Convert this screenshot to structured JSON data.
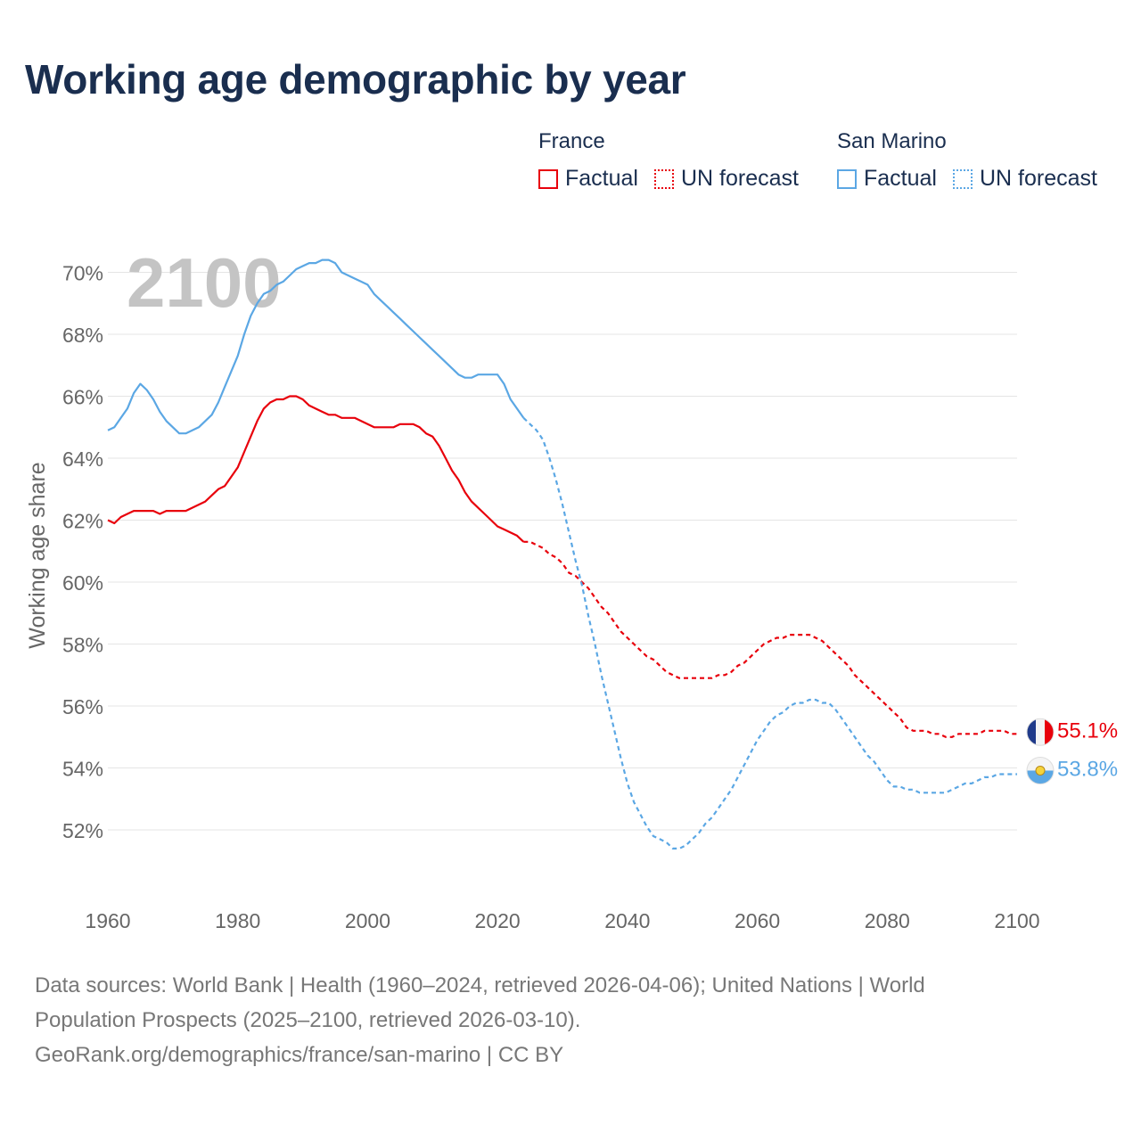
{
  "title": "Working age demographic by year",
  "legend": {
    "groups": [
      {
        "name": "France",
        "factual_label": "Factual",
        "forecast_label": "UN forecast",
        "color": "#e8000b"
      },
      {
        "name": "San Marino",
        "factual_label": "Factual",
        "forecast_label": "UN forecast",
        "color": "#5ba7e4"
      }
    ]
  },
  "year_watermark": "2100",
  "source": {
    "line1": "Data sources: World Bank | Health (1960–2024, retrieved 2026-04-06); United Nations | World",
    "line2": "Population Prospects (2025–2100, retrieved 2026-03-10).",
    "line3": "GeoRank.org/demographics/france/san-marino | CC BY"
  },
  "chart_data": {
    "type": "line",
    "title": "Working age demographic by year",
    "xlabel": "",
    "ylabel": "Working age share",
    "xlim": [
      1960,
      2100
    ],
    "ylim": [
      50,
      70.5
    ],
    "x_ticks": [
      1960,
      1980,
      2000,
      2020,
      2040,
      2060,
      2080,
      2100
    ],
    "x_tick_labels": [
      "1960",
      "1980",
      "2000",
      "2020",
      "2040",
      "2060",
      "2080",
      "2100"
    ],
    "y_ticks": [
      52,
      54,
      56,
      58,
      60,
      62,
      64,
      66,
      68,
      70
    ],
    "y_tick_labels": [
      "52%",
      "54%",
      "56%",
      "58%",
      "60%",
      "62%",
      "64%",
      "66%",
      "68%",
      "70%"
    ],
    "grid": true,
    "series": [
      {
        "name": "France",
        "color": "#e8000b",
        "end_label": "55.1%",
        "factual": {
          "x": [
            1960,
            1961,
            1962,
            1963,
            1964,
            1965,
            1966,
            1967,
            1968,
            1969,
            1970,
            1971,
            1972,
            1973,
            1974,
            1975,
            1976,
            1977,
            1978,
            1979,
            1980,
            1981,
            1982,
            1983,
            1984,
            1985,
            1986,
            1987,
            1988,
            1989,
            1990,
            1991,
            1992,
            1993,
            1994,
            1995,
            1996,
            1997,
            1998,
            1999,
            2000,
            2001,
            2002,
            2003,
            2004,
            2005,
            2006,
            2007,
            2008,
            2009,
            2010,
            2011,
            2012,
            2013,
            2014,
            2015,
            2016,
            2017,
            2018,
            2019,
            2020,
            2021,
            2022,
            2023,
            2024
          ],
          "y": [
            62.0,
            61.9,
            62.1,
            62.2,
            62.3,
            62.3,
            62.3,
            62.3,
            62.2,
            62.3,
            62.3,
            62.3,
            62.3,
            62.4,
            62.5,
            62.6,
            62.8,
            63.0,
            63.1,
            63.4,
            63.7,
            64.2,
            64.7,
            65.2,
            65.6,
            65.8,
            65.9,
            65.9,
            66.0,
            66.0,
            65.9,
            65.7,
            65.6,
            65.5,
            65.4,
            65.4,
            65.3,
            65.3,
            65.3,
            65.2,
            65.1,
            65.0,
            65.0,
            65.0,
            65.0,
            65.1,
            65.1,
            65.1,
            65.0,
            64.8,
            64.7,
            64.4,
            64.0,
            63.6,
            63.3,
            62.9,
            62.6,
            62.4,
            62.2,
            62.0,
            61.8,
            61.7,
            61.6,
            61.5,
            61.3
          ]
        },
        "forecast": {
          "x": [
            2024,
            2025,
            2026,
            2027,
            2028,
            2029,
            2030,
            2031,
            2032,
            2033,
            2034,
            2035,
            2036,
            2037,
            2038,
            2039,
            2040,
            2041,
            2042,
            2043,
            2044,
            2045,
            2046,
            2047,
            2048,
            2049,
            2050,
            2051,
            2052,
            2053,
            2054,
            2055,
            2056,
            2057,
            2058,
            2059,
            2060,
            2061,
            2062,
            2063,
            2064,
            2065,
            2066,
            2067,
            2068,
            2069,
            2070,
            2071,
            2072,
            2073,
            2074,
            2075,
            2076,
            2077,
            2078,
            2079,
            2080,
            2081,
            2082,
            2083,
            2084,
            2085,
            2086,
            2087,
            2088,
            2089,
            2090,
            2091,
            2092,
            2093,
            2094,
            2095,
            2096,
            2097,
            2098,
            2099,
            2100
          ],
          "y": [
            61.3,
            61.3,
            61.2,
            61.1,
            60.9,
            60.8,
            60.6,
            60.3,
            60.2,
            60.0,
            59.8,
            59.5,
            59.2,
            59.0,
            58.7,
            58.4,
            58.2,
            58.0,
            57.8,
            57.6,
            57.5,
            57.3,
            57.1,
            57.0,
            56.9,
            56.9,
            56.9,
            56.9,
            56.9,
            56.9,
            57.0,
            57.0,
            57.1,
            57.3,
            57.4,
            57.6,
            57.8,
            58.0,
            58.1,
            58.2,
            58.2,
            58.3,
            58.3,
            58.3,
            58.3,
            58.2,
            58.1,
            57.9,
            57.7,
            57.5,
            57.3,
            57.0,
            56.8,
            56.6,
            56.4,
            56.2,
            56.0,
            55.8,
            55.6,
            55.3,
            55.2,
            55.2,
            55.2,
            55.1,
            55.1,
            55.0,
            55.0,
            55.1,
            55.1,
            55.1,
            55.1,
            55.2,
            55.2,
            55.2,
            55.2,
            55.1,
            55.1
          ]
        }
      },
      {
        "name": "San Marino",
        "color": "#5ba7e4",
        "end_label": "53.8%",
        "factual": {
          "x": [
            1960,
            1961,
            1962,
            1963,
            1964,
            1965,
            1966,
            1967,
            1968,
            1969,
            1970,
            1971,
            1972,
            1973,
            1974,
            1975,
            1976,
            1977,
            1978,
            1979,
            1980,
            1981,
            1982,
            1983,
            1984,
            1985,
            1986,
            1987,
            1988,
            1989,
            1990,
            1991,
            1992,
            1993,
            1994,
            1995,
            1996,
            1997,
            1998,
            1999,
            2000,
            2001,
            2002,
            2003,
            2004,
            2005,
            2006,
            2007,
            2008,
            2009,
            2010,
            2011,
            2012,
            2013,
            2014,
            2015,
            2016,
            2017,
            2018,
            2019,
            2020,
            2021,
            2022,
            2023,
            2024
          ],
          "y": [
            64.9,
            65.0,
            65.3,
            65.6,
            66.1,
            66.4,
            66.2,
            65.9,
            65.5,
            65.2,
            65.0,
            64.8,
            64.8,
            64.9,
            65.0,
            65.2,
            65.4,
            65.8,
            66.3,
            66.8,
            67.3,
            68.0,
            68.6,
            69.0,
            69.3,
            69.4,
            69.6,
            69.7,
            69.9,
            70.1,
            70.2,
            70.3,
            70.3,
            70.4,
            70.4,
            70.3,
            70.0,
            69.9,
            69.8,
            69.7,
            69.6,
            69.3,
            69.1,
            68.9,
            68.7,
            68.5,
            68.3,
            68.1,
            67.9,
            67.7,
            67.5,
            67.3,
            67.1,
            66.9,
            66.7,
            66.6,
            66.6,
            66.7,
            66.7,
            66.7,
            66.7,
            66.4,
            65.9,
            65.6,
            65.3
          ]
        },
        "forecast": {
          "x": [
            2024,
            2025,
            2026,
            2027,
            2028,
            2029,
            2030,
            2031,
            2032,
            2033,
            2034,
            2035,
            2036,
            2037,
            2038,
            2039,
            2040,
            2041,
            2042,
            2043,
            2044,
            2045,
            2046,
            2047,
            2048,
            2049,
            2050,
            2051,
            2052,
            2053,
            2054,
            2055,
            2056,
            2057,
            2058,
            2059,
            2060,
            2061,
            2062,
            2063,
            2064,
            2065,
            2066,
            2067,
            2068,
            2069,
            2070,
            2071,
            2072,
            2073,
            2074,
            2075,
            2076,
            2077,
            2078,
            2079,
            2080,
            2081,
            2082,
            2083,
            2084,
            2085,
            2086,
            2087,
            2088,
            2089,
            2090,
            2091,
            2092,
            2093,
            2094,
            2095,
            2096,
            2097,
            2098,
            2099,
            2100
          ],
          "y": [
            65.3,
            65.1,
            64.9,
            64.6,
            64.0,
            63.3,
            62.5,
            61.6,
            60.7,
            59.9,
            58.9,
            58.0,
            57.0,
            56.1,
            55.2,
            54.3,
            53.5,
            52.9,
            52.5,
            52.1,
            51.8,
            51.7,
            51.6,
            51.4,
            51.4,
            51.5,
            51.7,
            51.9,
            52.2,
            52.4,
            52.7,
            53.0,
            53.3,
            53.7,
            54.1,
            54.5,
            54.9,
            55.2,
            55.5,
            55.7,
            55.8,
            56.0,
            56.1,
            56.1,
            56.2,
            56.2,
            56.1,
            56.1,
            55.9,
            55.6,
            55.3,
            55.0,
            54.7,
            54.4,
            54.2,
            53.9,
            53.6,
            53.4,
            53.4,
            53.3,
            53.3,
            53.2,
            53.2,
            53.2,
            53.2,
            53.2,
            53.3,
            53.4,
            53.5,
            53.5,
            53.6,
            53.7,
            53.7,
            53.8,
            53.8,
            53.8,
            53.8
          ]
        }
      }
    ]
  }
}
